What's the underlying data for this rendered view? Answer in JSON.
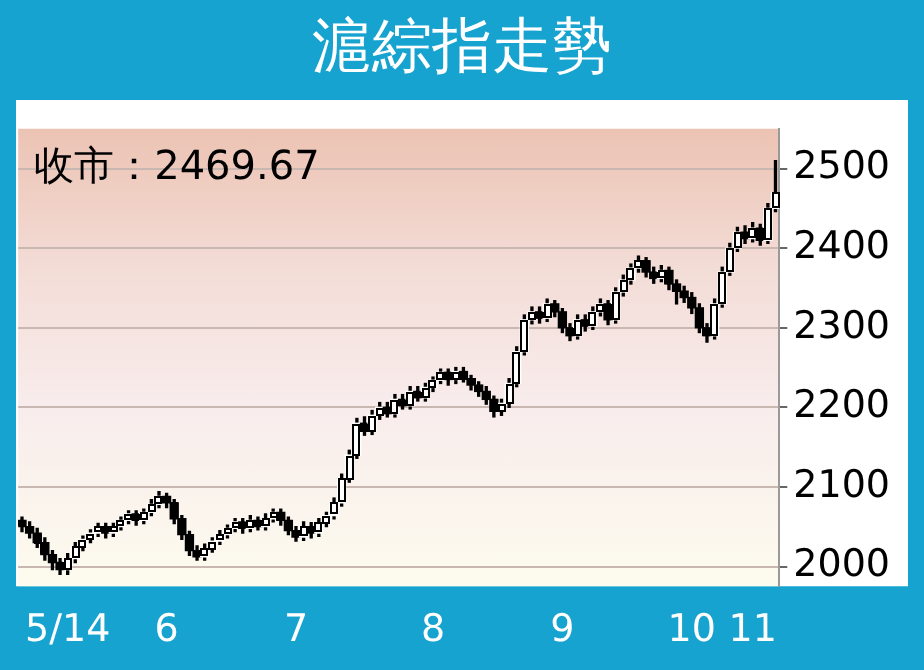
{
  "chart_data": {
    "type": "candlestick",
    "title": "滬綜指走勢",
    "annotations": [
      "收市：2469.67"
    ],
    "categories": [
      null,
      null,
      null,
      null,
      null,
      null,
      "5/14",
      null,
      null,
      null,
      null,
      null,
      null,
      null,
      null,
      null,
      null,
      null,
      null,
      "6",
      null,
      null,
      null,
      null,
      null,
      null,
      null,
      null,
      null,
      null,
      null,
      null,
      null,
      null,
      null,
      null,
      "7",
      null,
      null,
      null,
      null,
      null,
      null,
      null,
      null,
      null,
      null,
      null,
      null,
      null,
      null,
      null,
      null,
      null,
      "8",
      null,
      null,
      null,
      null,
      null,
      null,
      null,
      null,
      null,
      null,
      null,
      null,
      null,
      null,
      null,
      null,
      "9",
      null,
      null,
      null,
      null,
      null,
      null,
      null,
      null,
      null,
      null,
      null,
      null,
      null,
      null,
      null,
      null,
      "10",
      null,
      null,
      null,
      null,
      null,
      null,
      null,
      "11",
      null,
      null,
      null
    ],
    "ohlc": [
      [
        2058,
        2062,
        2044,
        2050
      ],
      [
        2050,
        2056,
        2036,
        2042
      ],
      [
        2042,
        2048,
        2024,
        2030
      ],
      [
        2030,
        2036,
        2008,
        2015
      ],
      [
        2015,
        2020,
        1996,
        2005
      ],
      [
        2005,
        2010,
        1990,
        1996
      ],
      [
        1996,
        2016,
        1990,
        2010
      ],
      [
        2010,
        2030,
        2005,
        2025
      ],
      [
        2025,
        2038,
        2020,
        2034
      ],
      [
        2034,
        2046,
        2030,
        2042
      ],
      [
        2042,
        2054,
        2038,
        2050
      ],
      [
        2050,
        2054,
        2036,
        2042
      ],
      [
        2042,
        2054,
        2038,
        2050
      ],
      [
        2050,
        2062,
        2046,
        2058
      ],
      [
        2058,
        2070,
        2054,
        2066
      ],
      [
        2066,
        2070,
        2052,
        2058
      ],
      [
        2058,
        2072,
        2054,
        2068
      ],
      [
        2068,
        2084,
        2064,
        2078
      ],
      [
        2078,
        2094,
        2074,
        2088
      ],
      [
        2088,
        2092,
        2074,
        2080
      ],
      [
        2080,
        2084,
        2054,
        2060
      ],
      [
        2060,
        2064,
        2034,
        2040
      ],
      [
        2040,
        2044,
        2014,
        2020
      ],
      [
        2020,
        2026,
        2008,
        2012
      ],
      [
        2012,
        2028,
        2008,
        2022
      ],
      [
        2022,
        2036,
        2018,
        2032
      ],
      [
        2032,
        2045,
        2028,
        2040
      ],
      [
        2040,
        2052,
        2036,
        2048
      ],
      [
        2048,
        2060,
        2044,
        2056
      ],
      [
        2056,
        2060,
        2042,
        2048
      ],
      [
        2048,
        2064,
        2044,
        2058
      ],
      [
        2058,
        2062,
        2046,
        2050
      ],
      [
        2050,
        2066,
        2046,
        2060
      ],
      [
        2060,
        2072,
        2056,
        2068
      ],
      [
        2068,
        2072,
        2052,
        2058
      ],
      [
        2058,
        2062,
        2040,
        2045
      ],
      [
        2045,
        2050,
        2032,
        2037
      ],
      [
        2037,
        2056,
        2033,
        2050
      ],
      [
        2050,
        2055,
        2036,
        2042
      ],
      [
        2042,
        2060,
        2038,
        2055
      ],
      [
        2055,
        2068,
        2050,
        2064
      ],
      [
        2064,
        2086,
        2060,
        2080
      ],
      [
        2080,
        2116,
        2076,
        2110
      ],
      [
        2110,
        2146,
        2106,
        2140
      ],
      [
        2140,
        2186,
        2136,
        2180
      ],
      [
        2180,
        2188,
        2165,
        2170
      ],
      [
        2170,
        2196,
        2166,
        2190
      ],
      [
        2190,
        2206,
        2185,
        2200
      ],
      [
        2200,
        2206,
        2188,
        2192
      ],
      [
        2192,
        2216,
        2188,
        2210
      ],
      [
        2210,
        2216,
        2198,
        2202
      ],
      [
        2202,
        2226,
        2198,
        2220
      ],
      [
        2220,
        2226,
        2208,
        2212
      ],
      [
        2212,
        2230,
        2208,
        2225
      ],
      [
        2225,
        2238,
        2220,
        2234
      ],
      [
        2234,
        2248,
        2230,
        2244
      ],
      [
        2244,
        2248,
        2228,
        2235
      ],
      [
        2235,
        2250,
        2230,
        2245
      ],
      [
        2245,
        2250,
        2232,
        2236
      ],
      [
        2236,
        2240,
        2222,
        2228
      ],
      [
        2228,
        2232,
        2214,
        2220
      ],
      [
        2220,
        2226,
        2204,
        2210
      ],
      [
        2210,
        2214,
        2188,
        2195
      ],
      [
        2195,
        2210,
        2190,
        2205
      ],
      [
        2205,
        2236,
        2200,
        2230
      ],
      [
        2230,
        2276,
        2226,
        2270
      ],
      [
        2270,
        2316,
        2266,
        2310
      ],
      [
        2310,
        2326,
        2305,
        2320
      ],
      [
        2320,
        2326,
        2306,
        2312
      ],
      [
        2312,
        2336,
        2308,
        2330
      ],
      [
        2330,
        2334,
        2314,
        2320
      ],
      [
        2320,
        2324,
        2294,
        2300
      ],
      [
        2300,
        2305,
        2284,
        2290
      ],
      [
        2290,
        2316,
        2286,
        2310
      ],
      [
        2310,
        2316,
        2296,
        2302
      ],
      [
        2302,
        2326,
        2298,
        2320
      ],
      [
        2320,
        2336,
        2315,
        2330
      ],
      [
        2330,
        2334,
        2304,
        2310
      ],
      [
        2310,
        2350,
        2306,
        2345
      ],
      [
        2345,
        2366,
        2340,
        2360
      ],
      [
        2360,
        2380,
        2355,
        2375
      ],
      [
        2375,
        2390,
        2370,
        2384
      ],
      [
        2384,
        2388,
        2364,
        2370
      ],
      [
        2370,
        2376,
        2356,
        2362
      ],
      [
        2362,
        2378,
        2358,
        2372
      ],
      [
        2372,
        2376,
        2348,
        2355
      ],
      [
        2355,
        2360,
        2330,
        2346
      ],
      [
        2346,
        2352,
        2332,
        2338
      ],
      [
        2338,
        2344,
        2318,
        2325
      ],
      [
        2325,
        2330,
        2294,
        2300
      ],
      [
        2300,
        2305,
        2282,
        2290
      ],
      [
        2290,
        2336,
        2286,
        2330
      ],
      [
        2330,
        2376,
        2326,
        2370
      ],
      [
        2370,
        2406,
        2366,
        2400
      ],
      [
        2400,
        2426,
        2396,
        2420
      ],
      [
        2420,
        2428,
        2406,
        2412
      ],
      [
        2412,
        2432,
        2408,
        2425
      ],
      [
        2425,
        2430,
        2404,
        2410
      ],
      [
        2410,
        2456,
        2406,
        2450
      ],
      [
        2450,
        2510,
        2446,
        2469.67
      ]
    ],
    "colors": [
      "#000000",
      "#000000",
      "#000000",
      "#000000",
      "#000000",
      "#000000",
      "#ffffff",
      "#ffffff",
      "#ffffff",
      "#ffffff",
      "#ffffff",
      "#000000",
      "#ffffff",
      "#ffffff",
      "#ffffff",
      "#000000",
      "#ffffff",
      "#ffffff",
      "#ffffff",
      "#000000",
      "#000000",
      "#000000",
      "#000000",
      "#000000",
      "#ffffff",
      "#ffffff",
      "#ffffff",
      "#ffffff",
      "#ffffff",
      "#000000",
      "#ffffff",
      "#000000",
      "#ffffff",
      "#ffffff",
      "#000000",
      "#000000",
      "#000000",
      "#ffffff",
      "#000000",
      "#ffffff",
      "#ffffff",
      "#ffffff",
      "#ffffff",
      "#ffffff",
      "#ffffff",
      "#000000",
      "#ffffff",
      "#ffffff",
      "#000000",
      "#ffffff",
      "#000000",
      "#ffffff",
      "#000000",
      "#ffffff",
      "#ffffff",
      "#ffffff",
      "#000000",
      "#ffffff",
      "#000000",
      "#000000",
      "#000000",
      "#000000",
      "#000000",
      "#ffffff",
      "#ffffff",
      "#ffffff",
      "#ffffff",
      "#ffffff",
      "#000000",
      "#ffffff",
      "#000000",
      "#000000",
      "#000000",
      "#ffffff",
      "#000000",
      "#ffffff",
      "#ffffff",
      "#000000",
      "#ffffff",
      "#ffffff",
      "#ffffff",
      "#ffffff",
      "#000000",
      "#000000",
      "#ffffff",
      "#000000",
      "#000000",
      "#000000",
      "#000000",
      "#000000",
      "#000000",
      "#ffffff",
      "#ffffff",
      "#ffffff",
      "#ffffff",
      "#000000",
      "#ffffff",
      "#000000",
      "#ffffff",
      "#ffffff"
    ],
    "color": "#000000",
    "ylim": [
      1975,
      2550
    ],
    "yticks": [
      {
        "value": 2000,
        "label": "2000"
      },
      {
        "value": 2100,
        "label": "2100"
      },
      {
        "value": 2200,
        "label": "2200"
      },
      {
        "value": 2300,
        "label": "2300"
      },
      {
        "value": 2400,
        "label": "2400"
      },
      {
        "value": 2500,
        "label": "2500"
      }
    ],
    "grid": "y"
  }
}
